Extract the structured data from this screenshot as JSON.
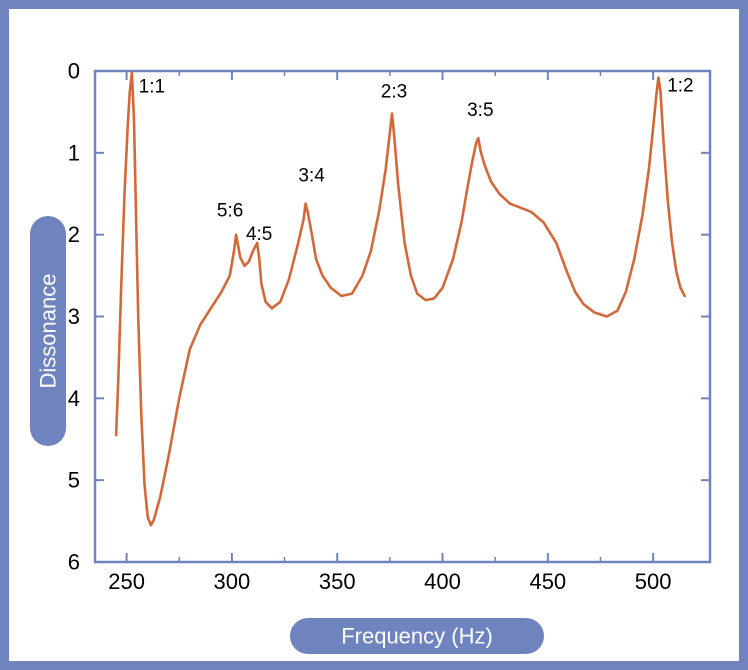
{
  "chart_data": {
    "type": "line",
    "title": "",
    "xlabel": "Frequency (Hz)",
    "ylabel": "Dissonance",
    "xlim": [
      235,
      527
    ],
    "ylim": [
      6,
      0
    ],
    "y_inverted": true,
    "x_ticks": [
      250,
      300,
      350,
      400,
      450,
      500
    ],
    "x_tick_labels": [
      "250",
      "300",
      "350",
      "400",
      "450",
      "500"
    ],
    "y_ticks": [
      0,
      1,
      2,
      3,
      4,
      5,
      6
    ],
    "y_tick_labels": [
      "0",
      "1",
      "2",
      "3",
      "4",
      "5",
      "6"
    ],
    "grid": false,
    "series_color": "#d2693a",
    "axis_color": "#6f84bf",
    "series": [
      {
        "name": "",
        "points": [
          [
            245,
            4.45
          ],
          [
            246,
            3.8
          ],
          [
            247.5,
            2.6
          ],
          [
            249,
            1.5
          ],
          [
            250.5,
            0.7
          ],
          [
            251.5,
            0.25
          ],
          [
            252.5,
            0.02
          ],
          [
            253.5,
            0.6
          ],
          [
            254.5,
            1.8
          ],
          [
            255.5,
            3.0
          ],
          [
            257,
            4.2
          ],
          [
            258.5,
            5.05
          ],
          [
            260,
            5.45
          ],
          [
            261.5,
            5.55
          ],
          [
            263,
            5.48
          ],
          [
            266,
            5.2
          ],
          [
            270,
            4.7
          ],
          [
            275,
            4.0
          ],
          [
            280,
            3.4
          ],
          [
            285,
            3.1
          ],
          [
            290,
            2.9
          ],
          [
            295,
            2.7
          ],
          [
            299,
            2.5
          ],
          [
            301,
            2.2
          ],
          [
            302,
            2.0
          ],
          [
            304,
            2.28
          ],
          [
            306,
            2.38
          ],
          [
            308,
            2.33
          ],
          [
            310,
            2.2
          ],
          [
            312,
            2.1
          ],
          [
            313,
            2.3
          ],
          [
            314,
            2.6
          ],
          [
            316,
            2.82
          ],
          [
            319,
            2.9
          ],
          [
            323,
            2.82
          ],
          [
            327,
            2.55
          ],
          [
            331,
            2.15
          ],
          [
            334,
            1.82
          ],
          [
            335,
            1.62
          ],
          [
            336,
            1.72
          ],
          [
            338,
            2.0
          ],
          [
            340,
            2.3
          ],
          [
            343,
            2.5
          ],
          [
            347,
            2.65
          ],
          [
            352,
            2.75
          ],
          [
            357,
            2.72
          ],
          [
            362,
            2.5
          ],
          [
            366,
            2.2
          ],
          [
            370,
            1.7
          ],
          [
            373,
            1.2
          ],
          [
            375,
            0.75
          ],
          [
            376,
            0.52
          ],
          [
            377,
            0.78
          ],
          [
            379,
            1.4
          ],
          [
            382,
            2.1
          ],
          [
            385,
            2.5
          ],
          [
            388,
            2.72
          ],
          [
            392,
            2.8
          ],
          [
            396,
            2.78
          ],
          [
            400,
            2.65
          ],
          [
            405,
            2.3
          ],
          [
            409,
            1.85
          ],
          [
            412,
            1.4
          ],
          [
            414,
            1.12
          ],
          [
            416,
            0.88
          ],
          [
            417,
            0.82
          ],
          [
            418,
            0.97
          ],
          [
            420,
            1.15
          ],
          [
            423,
            1.35
          ],
          [
            427,
            1.5
          ],
          [
            432,
            1.62
          ],
          [
            437,
            1.67
          ],
          [
            442,
            1.72
          ],
          [
            448,
            1.85
          ],
          [
            454,
            2.1
          ],
          [
            459,
            2.45
          ],
          [
            463,
            2.7
          ],
          [
            467,
            2.85
          ],
          [
            472,
            2.95
          ],
          [
            478,
            3.0
          ],
          [
            483,
            2.93
          ],
          [
            487,
            2.7
          ],
          [
            491,
            2.3
          ],
          [
            495,
            1.75
          ],
          [
            498,
            1.2
          ],
          [
            500,
            0.7
          ],
          [
            501.5,
            0.3
          ],
          [
            502.5,
            0.08
          ],
          [
            503.5,
            0.25
          ],
          [
            505,
            0.9
          ],
          [
            507,
            1.6
          ],
          [
            509,
            2.1
          ],
          [
            511,
            2.45
          ],
          [
            513,
            2.65
          ],
          [
            515,
            2.75
          ]
        ]
      }
    ],
    "annotations": [
      {
        "label": "1:1",
        "x": 252.5,
        "y": 0.02
      },
      {
        "label": "5:6",
        "x": 302,
        "y": 2.0
      },
      {
        "label": "4:5",
        "x": 312,
        "y": 2.1
      },
      {
        "label": "3:4",
        "x": 335,
        "y": 1.62
      },
      {
        "label": "2:3",
        "x": 376,
        "y": 0.52
      },
      {
        "label": "3:5",
        "x": 417,
        "y": 0.82
      },
      {
        "label": "1:2",
        "x": 502.5,
        "y": 0.08
      }
    ],
    "legend": "none"
  }
}
